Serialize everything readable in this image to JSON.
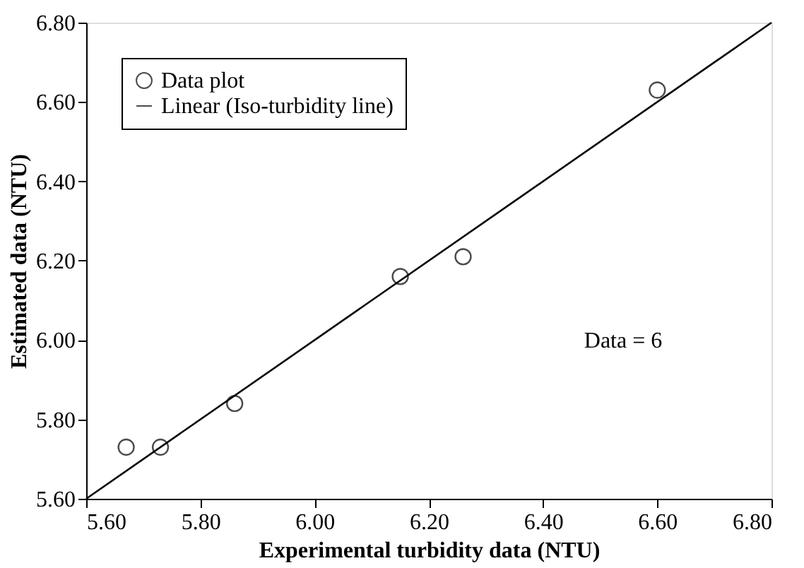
{
  "chart_data": {
    "type": "scatter",
    "xlabel": "Experimental turbidity data (NTU)",
    "ylabel": "Estimated data (NTU)",
    "series": [
      {
        "name": "Data plot",
        "marker": "circle",
        "color": "#000000",
        "x": [
          5.67,
          5.73,
          5.86,
          6.15,
          6.26,
          6.6
        ],
        "values": [
          5.73,
          5.73,
          5.84,
          6.16,
          6.21,
          6.63
        ]
      },
      {
        "name": "Linear (Iso-turbidity line)",
        "type": "line",
        "marker": "none",
        "line_style": "solid",
        "color": "#000000",
        "x": [
          5.6,
          6.8
        ],
        "values": [
          5.6,
          6.8
        ]
      }
    ],
    "xlim": [
      5.6,
      6.8
    ],
    "ylim": [
      5.6,
      6.8
    ],
    "xticks": [
      {
        "value": 5.6,
        "label": "5.60"
      },
      {
        "value": 5.8,
        "label": "5.80"
      },
      {
        "value": 6.0,
        "label": "6.00"
      },
      {
        "value": 6.2,
        "label": "6.20"
      },
      {
        "value": 6.4,
        "label": "6.40"
      },
      {
        "value": 6.6,
        "label": "6.60"
      },
      {
        "value": 6.8,
        "label": "6.80"
      }
    ],
    "yticks": [
      {
        "value": 5.6,
        "label": "5.60"
      },
      {
        "value": 5.8,
        "label": "5.80"
      },
      {
        "value": 6.0,
        "label": "6.00"
      },
      {
        "value": 6.2,
        "label": "6.20"
      },
      {
        "value": 6.4,
        "label": "6.40"
      },
      {
        "value": 6.6,
        "label": "6.60"
      },
      {
        "value": 6.8,
        "label": "6.80"
      }
    ],
    "annotations": [
      "Data = 6"
    ],
    "legend": "top left",
    "grid": false
  }
}
